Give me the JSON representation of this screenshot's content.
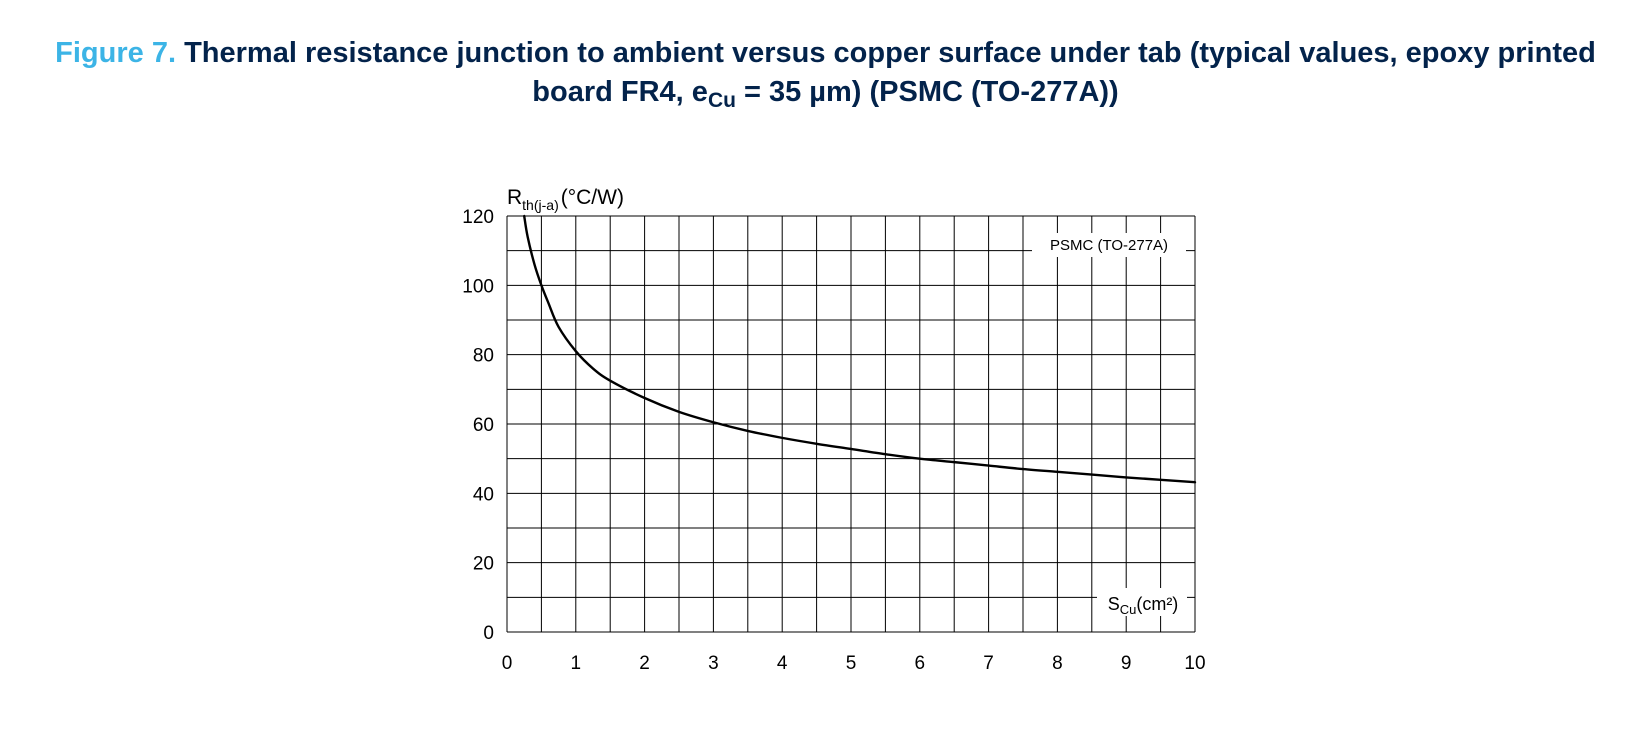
{
  "figure": {
    "label": "Figure 7.",
    "title_part1": "Thermal resistance junction to ambient versus copper surface under tab (typical values, epoxy printed board FR4, e",
    "title_sub": "Cu",
    "title_part2": " = 35 µm) (PSMC (TO-277A))"
  },
  "chart_data": {
    "type": "line",
    "title": "Thermal resistance junction to ambient versus copper surface under tab (typical values, epoxy printed board FR4, eCu = 35 µm) (PSMC (TO-277A))",
    "ylabel": {
      "main": "R",
      "sub": "th(j-a)",
      "unit": "(°C/W)"
    },
    "xlabel": {
      "main": "S",
      "sub": "Cu",
      "unit": "(cm²)"
    },
    "xlim": [
      0,
      10
    ],
    "ylim": [
      0,
      120
    ],
    "x_ticks": [
      0,
      1,
      2,
      3,
      4,
      5,
      6,
      7,
      8,
      9,
      10
    ],
    "y_ticks": [
      0,
      20,
      40,
      60,
      80,
      100,
      120
    ],
    "x_tick_labels": [
      "0",
      "1",
      "2",
      "3",
      "4",
      "5",
      "6",
      "7",
      "8",
      "9",
      "10"
    ],
    "y_tick_labels": [
      "0",
      "20",
      "40",
      "60",
      "80",
      "100",
      "120"
    ],
    "grid": true,
    "legend_position": "top-right",
    "series": [
      {
        "name": "PSMC (TO-277A)",
        "x": [
          0.25,
          0.3,
          0.4,
          0.5,
          0.6,
          0.75,
          1.0,
          1.25,
          1.5,
          2.0,
          2.5,
          3.0,
          3.5,
          4.0,
          4.5,
          5.0,
          5.5,
          6.0,
          6.5,
          7.0,
          7.5,
          8.0,
          8.5,
          9.0,
          9.5,
          10.0
        ],
        "y": [
          120,
          114,
          106,
          100,
          95,
          88,
          81,
          76,
          72.5,
          67.5,
          63.5,
          60.5,
          58,
          56,
          54.3,
          52.8,
          51.3,
          50,
          49,
          48,
          47,
          46.2,
          45.4,
          44.6,
          43.9,
          43.2
        ]
      }
    ]
  }
}
